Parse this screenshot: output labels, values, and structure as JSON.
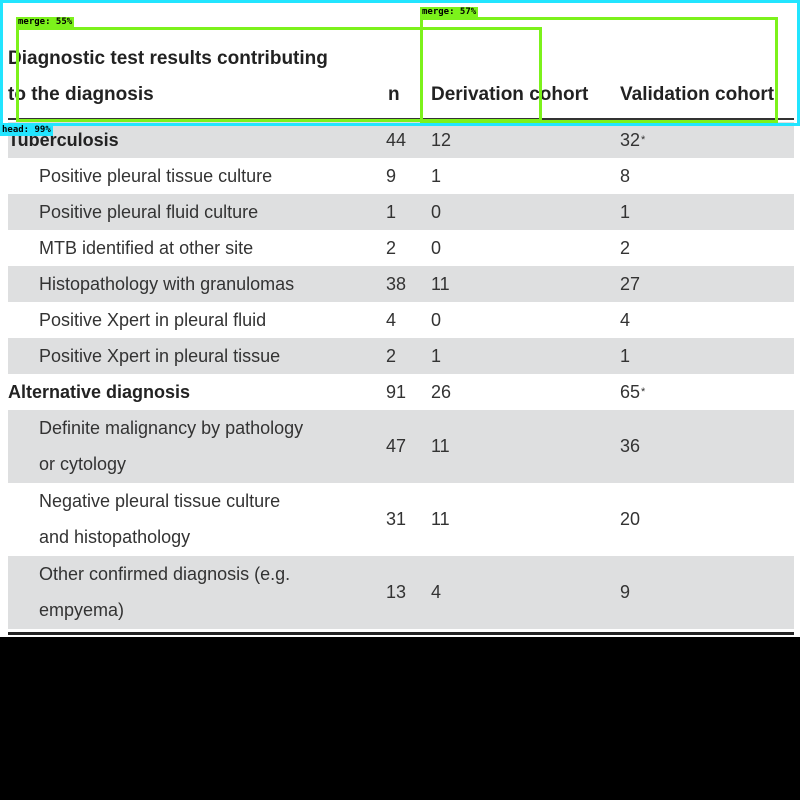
{
  "header": {
    "label_line1": "Diagnostic test results contributing",
    "label_line2": "to the diagnosis",
    "n": "n",
    "derivation": "Derivation cohort",
    "validation": "Validation cohort"
  },
  "rows": [
    {
      "label": "Tuberculosis",
      "n": "44",
      "derivation": "12",
      "validation": "32",
      "validation_sup": "*"
    },
    {
      "label": "Positive pleural tissue culture",
      "n": "9",
      "derivation": "1",
      "validation": "8"
    },
    {
      "label": "Positive pleural fluid culture",
      "n": "1",
      "derivation": "0",
      "validation": "1"
    },
    {
      "label": "MTB identified at other site",
      "n": "2",
      "derivation": "0",
      "validation": "2"
    },
    {
      "label": "Histopathology with granulomas",
      "n": "38",
      "derivation": "11",
      "validation": "27"
    },
    {
      "label": "Positive Xpert in pleural fluid",
      "n": "4",
      "derivation": "0",
      "validation": "4"
    },
    {
      "label": "Positive Xpert in pleural tissue",
      "n": "2",
      "derivation": "1",
      "validation": "1"
    },
    {
      "label": "Alternative diagnosis",
      "n": "91",
      "derivation": "26",
      "validation": "65",
      "validation_sup": "*"
    },
    {
      "label_line1": "Definite malignancy by pathology",
      "label_line2": "or cytology",
      "n": "47",
      "derivation": "11",
      "validation": "36"
    },
    {
      "label_line1": "Negative pleural tissue culture",
      "label_line2": "and histopathology",
      "n": "31",
      "derivation": "11",
      "validation": "20"
    },
    {
      "label_line1": "Other confirmed diagnosis (e.g.",
      "label_line2": "empyema)",
      "n": "13",
      "derivation": "4",
      "validation": "9"
    }
  ],
  "overlays": {
    "merge1": "merge: 55%",
    "merge2": "merge: 57%",
    "head": "head: 99%"
  },
  "colors": {
    "head_box": "#22e5ff",
    "merge_box": "#7cf21b",
    "row_shade": "#dedfe0"
  }
}
